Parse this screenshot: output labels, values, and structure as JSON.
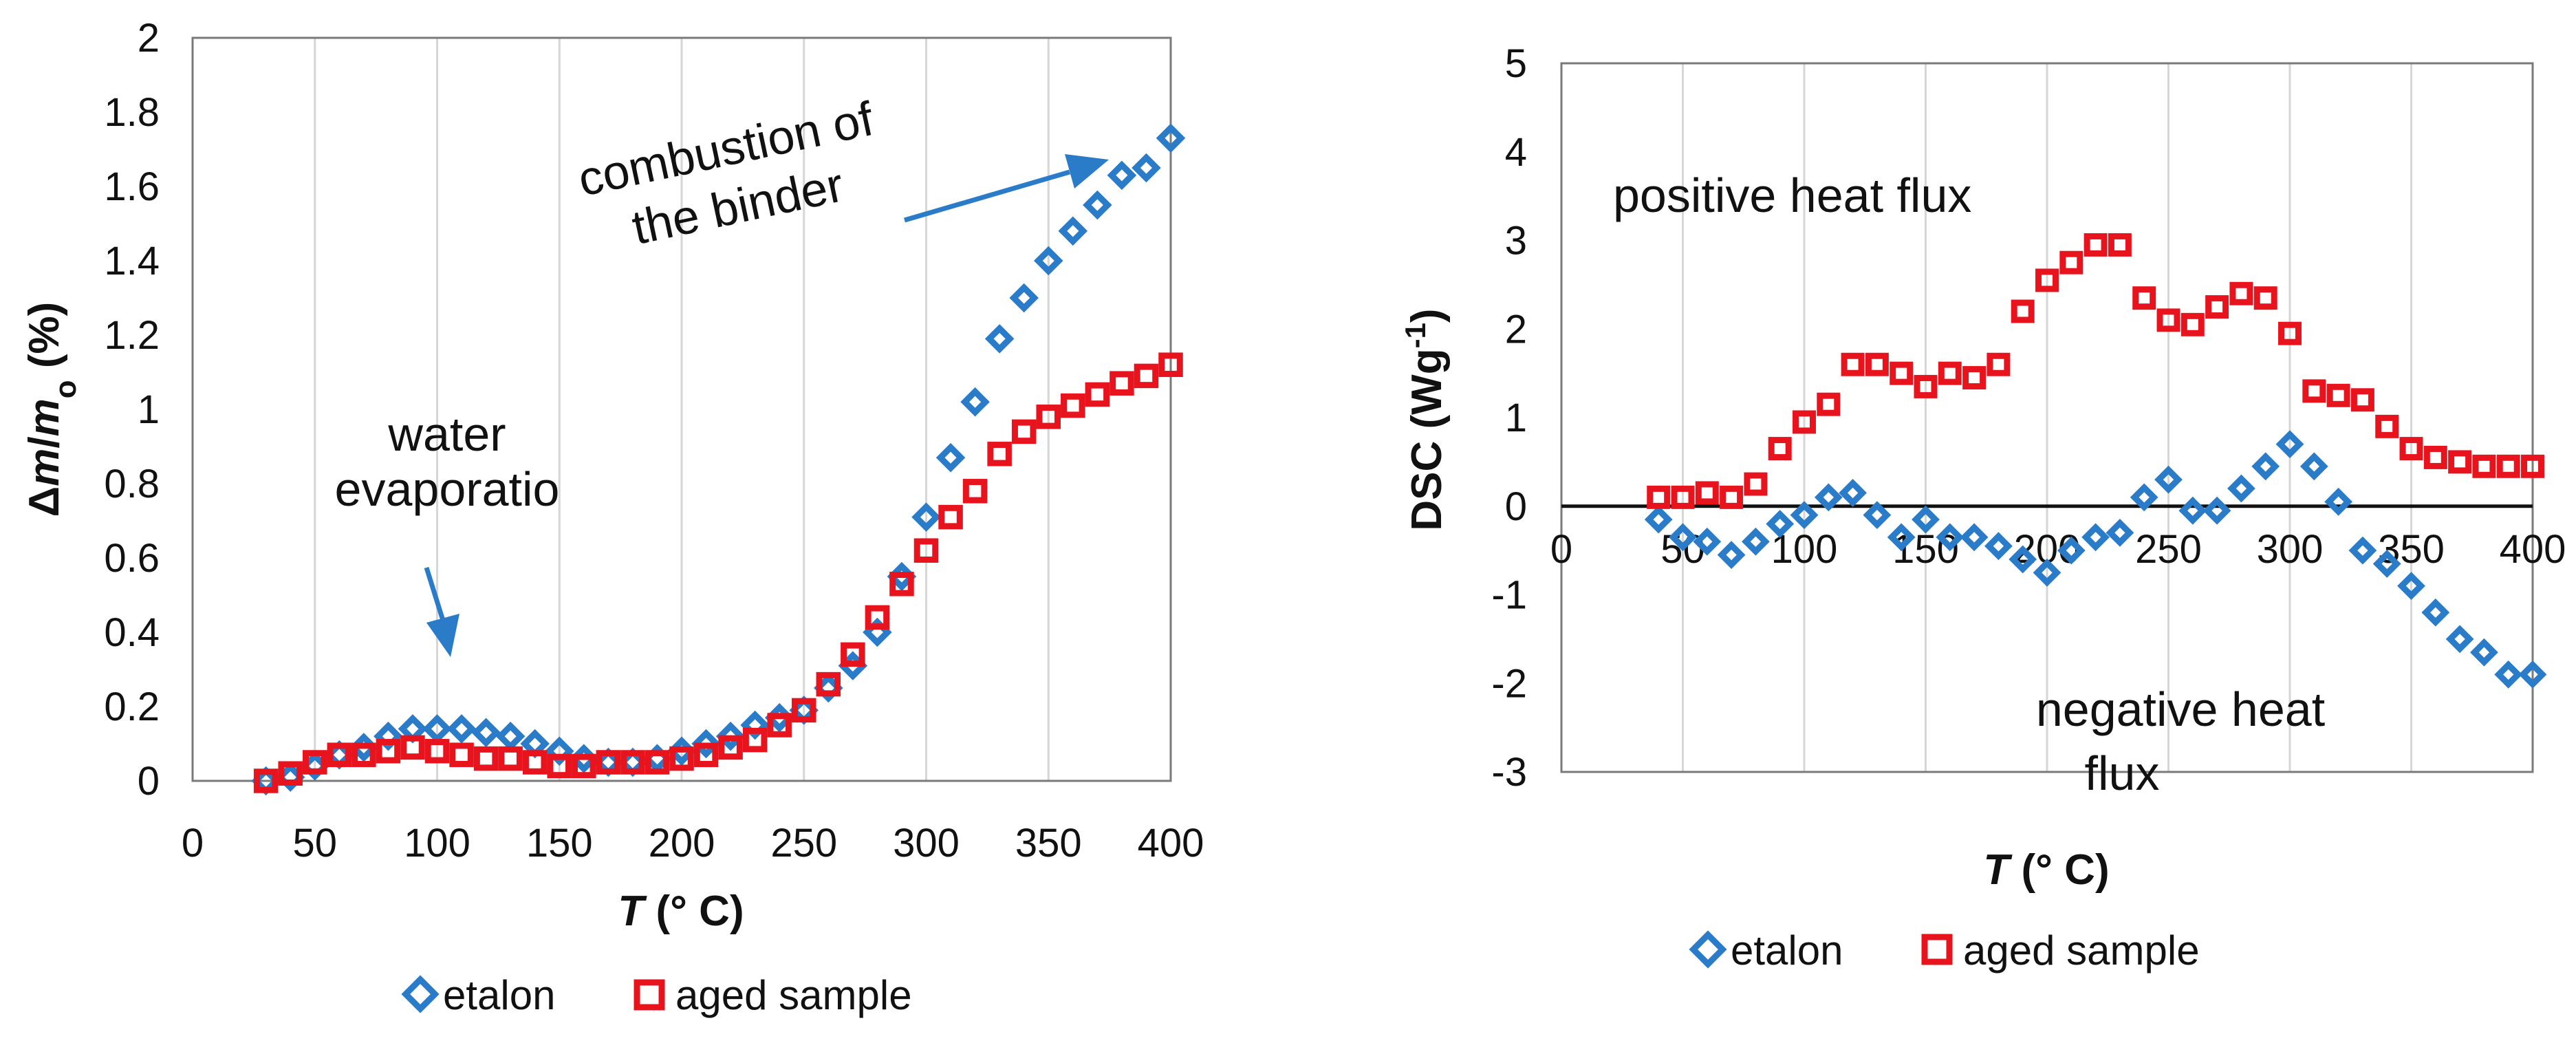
{
  "chart_data": [
    {
      "type": "scatter",
      "xlim": [
        0,
        400
      ],
      "ylim": [
        0,
        2
      ],
      "xticks": [
        "0",
        "50",
        "100",
        "150",
        "200",
        "250",
        "300",
        "350",
        "400"
      ],
      "yticks": [
        "0",
        "0.2",
        "0.4",
        "0.6",
        "0.8",
        "1",
        "1.2",
        "1.4",
        "1.6",
        "1.8",
        "2"
      ],
      "xlabel": {
        "var": "T",
        "rest": " (°  C)"
      },
      "ylabel": {
        "delta": "Δ",
        "m": "m",
        "slash": "/",
        "m0": "m",
        "sub": "o",
        "unit": " (%)"
      },
      "grid": "vertical",
      "annotations": {
        "water_line1": "water",
        "water_line2": "evaporatio",
        "combustion_line1": "combustion of",
        "combustion_line2": "the binder"
      },
      "legend": {
        "position": "bottom",
        "etalon": "etalon",
        "aged": "aged sample"
      },
      "colors": {
        "etalon": "#2a7bc8",
        "aged": "#e8141d",
        "arrow": "#2a7bc8"
      },
      "series": [
        {
          "name": "etalon",
          "x": [
            30,
            40,
            50,
            60,
            70,
            80,
            90,
            100,
            110,
            120,
            130,
            140,
            150,
            160,
            170,
            180,
            190,
            200,
            210,
            220,
            230,
            240,
            250,
            260,
            270,
            280,
            290,
            300,
            310,
            320,
            330,
            340,
            350,
            360,
            370,
            380,
            390,
            400
          ],
          "y": [
            0.0,
            0.01,
            0.04,
            0.07,
            0.09,
            0.12,
            0.14,
            0.14,
            0.14,
            0.13,
            0.12,
            0.1,
            0.08,
            0.06,
            0.05,
            0.05,
            0.06,
            0.08,
            0.1,
            0.12,
            0.15,
            0.17,
            0.19,
            0.25,
            0.31,
            0.4,
            0.55,
            0.71,
            0.87,
            1.02,
            1.19,
            1.3,
            1.4,
            1.48,
            1.55,
            1.63,
            1.65,
            1.73
          ]
        },
        {
          "name": "aged sample",
          "x": [
            30,
            40,
            50,
            60,
            70,
            80,
            90,
            100,
            110,
            120,
            130,
            140,
            150,
            160,
            170,
            180,
            190,
            200,
            210,
            220,
            230,
            240,
            250,
            260,
            270,
            280,
            290,
            300,
            310,
            320,
            330,
            340,
            350,
            360,
            370,
            380,
            390,
            400
          ],
          "y": [
            0.0,
            0.02,
            0.05,
            0.07,
            0.07,
            0.08,
            0.09,
            0.08,
            0.07,
            0.06,
            0.06,
            0.05,
            0.04,
            0.04,
            0.05,
            0.05,
            0.05,
            0.06,
            0.07,
            0.09,
            0.11,
            0.15,
            0.19,
            0.26,
            0.34,
            0.44,
            0.53,
            0.62,
            0.71,
            0.78,
            0.88,
            0.94,
            0.98,
            1.01,
            1.04,
            1.07,
            1.09,
            1.12
          ]
        }
      ]
    },
    {
      "type": "scatter",
      "xlim": [
        0,
        400
      ],
      "ylim": [
        -3,
        5
      ],
      "xticks": [
        "0",
        "50",
        "100",
        "150",
        "200",
        "250",
        "300",
        "350",
        "400"
      ],
      "yticks": [
        "-3",
        "-2",
        "-1",
        "0",
        "1",
        "2",
        "3",
        "4",
        "5"
      ],
      "xlabel": {
        "var": "T",
        "rest": " (°  C)"
      },
      "ylabel": {
        "main": "DSC (Wg",
        "sup": "-1",
        "close": ")"
      },
      "grid": "vertical",
      "annotations": {
        "positive": "positive heat flux",
        "negative_line1": "negative heat",
        "negative_line2": "flux"
      },
      "legend": {
        "position": "bottom",
        "etalon": "etalon",
        "aged": "aged sample"
      },
      "colors": {
        "etalon": "#2a7bc8",
        "aged": "#e8141d"
      },
      "series": [
        {
          "name": "etalon",
          "x": [
            40,
            50,
            60,
            70,
            80,
            90,
            100,
            110,
            120,
            130,
            140,
            150,
            160,
            170,
            180,
            190,
            200,
            210,
            220,
            230,
            240,
            250,
            260,
            270,
            280,
            290,
            300,
            310,
            320,
            330,
            340,
            350,
            360,
            370,
            380,
            390,
            400
          ],
          "y": [
            -0.15,
            -0.35,
            -0.4,
            -0.55,
            -0.4,
            -0.2,
            -0.1,
            0.1,
            0.15,
            -0.1,
            -0.35,
            -0.15,
            -0.35,
            -0.35,
            -0.45,
            -0.6,
            -0.75,
            -0.5,
            -0.35,
            -0.3,
            0.1,
            0.3,
            -0.05,
            -0.05,
            0.2,
            0.45,
            0.7,
            0.45,
            0.05,
            -0.5,
            -0.65,
            -0.9,
            -1.2,
            -1.5,
            -1.65,
            -1.9,
            -1.9
          ]
        },
        {
          "name": "aged sample",
          "x": [
            40,
            50,
            60,
            70,
            80,
            90,
            100,
            110,
            120,
            130,
            140,
            150,
            160,
            170,
            180,
            190,
            200,
            210,
            220,
            230,
            240,
            250,
            260,
            270,
            280,
            290,
            300,
            310,
            320,
            330,
            340,
            350,
            360,
            370,
            380,
            390,
            400
          ],
          "y": [
            0.1,
            0.1,
            0.15,
            0.1,
            0.25,
            0.65,
            0.95,
            1.15,
            1.6,
            1.6,
            1.5,
            1.35,
            1.5,
            1.45,
            1.6,
            2.2,
            2.55,
            2.75,
            2.95,
            2.95,
            2.35,
            2.1,
            2.05,
            2.25,
            2.4,
            2.35,
            1.95,
            1.3,
            1.25,
            1.2,
            0.9,
            0.65,
            0.55,
            0.5,
            0.45,
            0.45,
            0.45
          ]
        }
      ]
    }
  ]
}
